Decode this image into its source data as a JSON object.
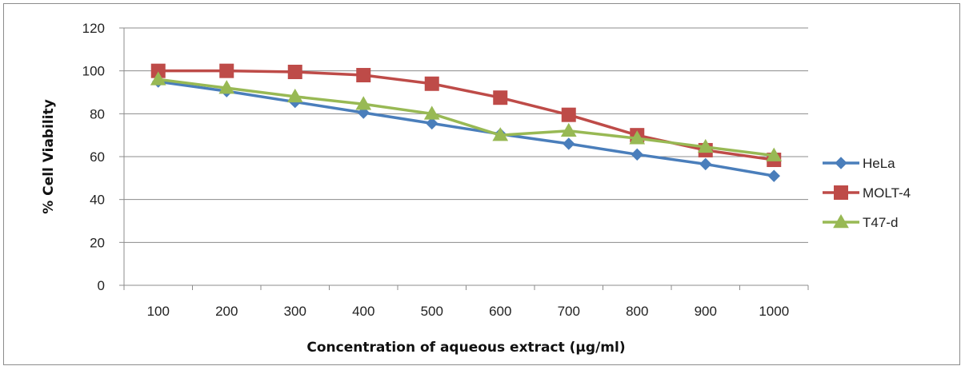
{
  "chart_data": {
    "type": "line",
    "title": "",
    "xlabel": "Concentration of aqueous extract (µg/ml)",
    "ylabel": "% Cell Viability",
    "categories": [
      "100",
      "200",
      "300",
      "400",
      "500",
      "600",
      "700",
      "800",
      "900",
      "1000"
    ],
    "ylim": [
      0,
      120
    ],
    "yticks": [
      "0",
      "20",
      "40",
      "60",
      "80",
      "100",
      "120"
    ],
    "grid": "horizontal",
    "legend_position": "right",
    "series": [
      {
        "name": "HeLa",
        "color": "#4a7ebb",
        "marker": "diamond",
        "values": [
          95,
          90.5,
          85.5,
          80.5,
          75.5,
          70.5,
          66,
          61,
          56.5,
          51
        ]
      },
      {
        "name": "MOLT-4",
        "color": "#be4b48",
        "marker": "square",
        "values": [
          100,
          100,
          99.5,
          98,
          94,
          87.5,
          79.5,
          70,
          63,
          58.5
        ]
      },
      {
        "name": "T47-d",
        "color": "#98b954",
        "marker": "triangle",
        "values": [
          96,
          92,
          88,
          84.5,
          80,
          70,
          72,
          68.5,
          64.5,
          60.5
        ]
      }
    ]
  }
}
